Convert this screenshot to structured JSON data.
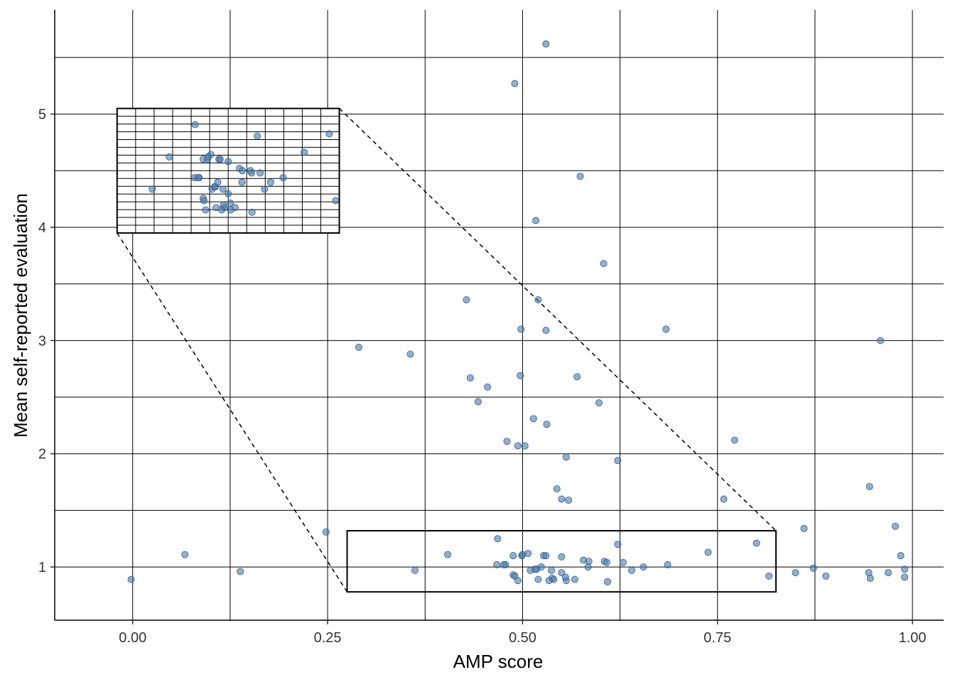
{
  "chart_data": {
    "type": "scatter",
    "title": "",
    "xlabel": "AMP score",
    "ylabel": "Mean self-reported evaluation",
    "xlim": [
      -0.1,
      1.04
    ],
    "ylim": [
      0.53,
      5.92
    ],
    "x_ticks": [
      0.0,
      0.25,
      0.5,
      0.75,
      1.0
    ],
    "x_tick_labels": [
      "0.00",
      "0.25",
      "0.50",
      "0.75",
      "1.00"
    ],
    "x_minor_ticks": [
      0.125,
      0.375,
      0.625,
      0.875
    ],
    "y_ticks": [
      1,
      2,
      3,
      4,
      5
    ],
    "y_tick_labels": [
      "1",
      "2",
      "3",
      "4",
      "5"
    ],
    "y_minor_ticks": [
      1.5,
      2.5,
      3.5,
      4.5,
      5.5
    ],
    "grid": true,
    "legend": "none",
    "point_color": "#4a7aad",
    "point_edge": "#3b5f87",
    "point_opacity": 0.6,
    "series": [
      {
        "x": [
          0.53,
          0.49,
          0.574,
          0.517,
          0.604,
          0.428,
          0.52,
          0.498,
          0.53,
          0.684,
          0.959,
          0.29,
          0.356,
          0.433,
          0.497,
          0.57,
          0.455,
          0.443,
          0.598,
          0.514,
          0.531,
          0.48,
          0.494,
          0.503,
          0.556,
          0.622,
          0.544,
          0.55,
          0.559,
          0.758,
          0.772,
          0.945,
          0.248,
          0.067,
          -0.002,
          0.138,
          0.362,
          0.404,
          0.468,
          0.478,
          0.488,
          0.499,
          0.507,
          0.527,
          0.53,
          0.55,
          0.578,
          0.585,
          0.605,
          0.608,
          0.622,
          0.629,
          0.64,
          0.655,
          0.686,
          0.738,
          0.8,
          0.816,
          0.85,
          0.861,
          0.873,
          0.889,
          0.944,
          0.946,
          0.969,
          0.978,
          0.985,
          0.99,
          0.99,
          0.467,
          0.476,
          0.488,
          0.49,
          0.494,
          0.51,
          0.518,
          0.52,
          0.524,
          0.537,
          0.538,
          0.54,
          0.55,
          0.556,
          0.567,
          0.584,
          0.609,
          0.516,
          0.534,
          0.5,
          0.555
        ],
        "y": [
          5.62,
          5.27,
          4.45,
          4.06,
          3.68,
          3.36,
          3.36,
          3.1,
          3.09,
          3.1,
          3.0,
          2.94,
          2.88,
          2.67,
          2.69,
          2.68,
          2.59,
          2.46,
          2.45,
          2.31,
          2.26,
          2.11,
          2.07,
          2.07,
          1.97,
          1.94,
          1.69,
          1.6,
          1.59,
          1.6,
          2.12,
          1.71,
          1.31,
          1.11,
          0.89,
          0.96,
          0.97,
          1.11,
          1.25,
          1.02,
          1.1,
          1.1,
          1.12,
          1.1,
          1.1,
          1.09,
          1.06,
          1.05,
          1.05,
          1.04,
          1.2,
          1.04,
          0.97,
          1.0,
          1.02,
          1.13,
          1.21,
          0.92,
          0.95,
          1.34,
          0.99,
          0.92,
          0.95,
          0.9,
          0.95,
          1.36,
          1.1,
          0.98,
          0.91,
          1.02,
          1.02,
          0.93,
          0.92,
          0.88,
          0.97,
          0.98,
          0.89,
          1.0,
          0.97,
          0.9,
          0.89,
          0.95,
          0.88,
          0.89,
          1.0,
          0.87,
          0.98,
          0.88,
          1.11,
          0.91
        ]
      }
    ],
    "zoom_source": {
      "x": [
        0.275,
        0.825
      ],
      "y": [
        0.78,
        1.32
      ]
    },
    "zoom_inset": {
      "x": [
        -0.02,
        0.265
      ],
      "y": [
        3.95,
        5.05
      ]
    },
    "zoom_inset_grid": {
      "columns": 12,
      "rows": 16
    }
  }
}
